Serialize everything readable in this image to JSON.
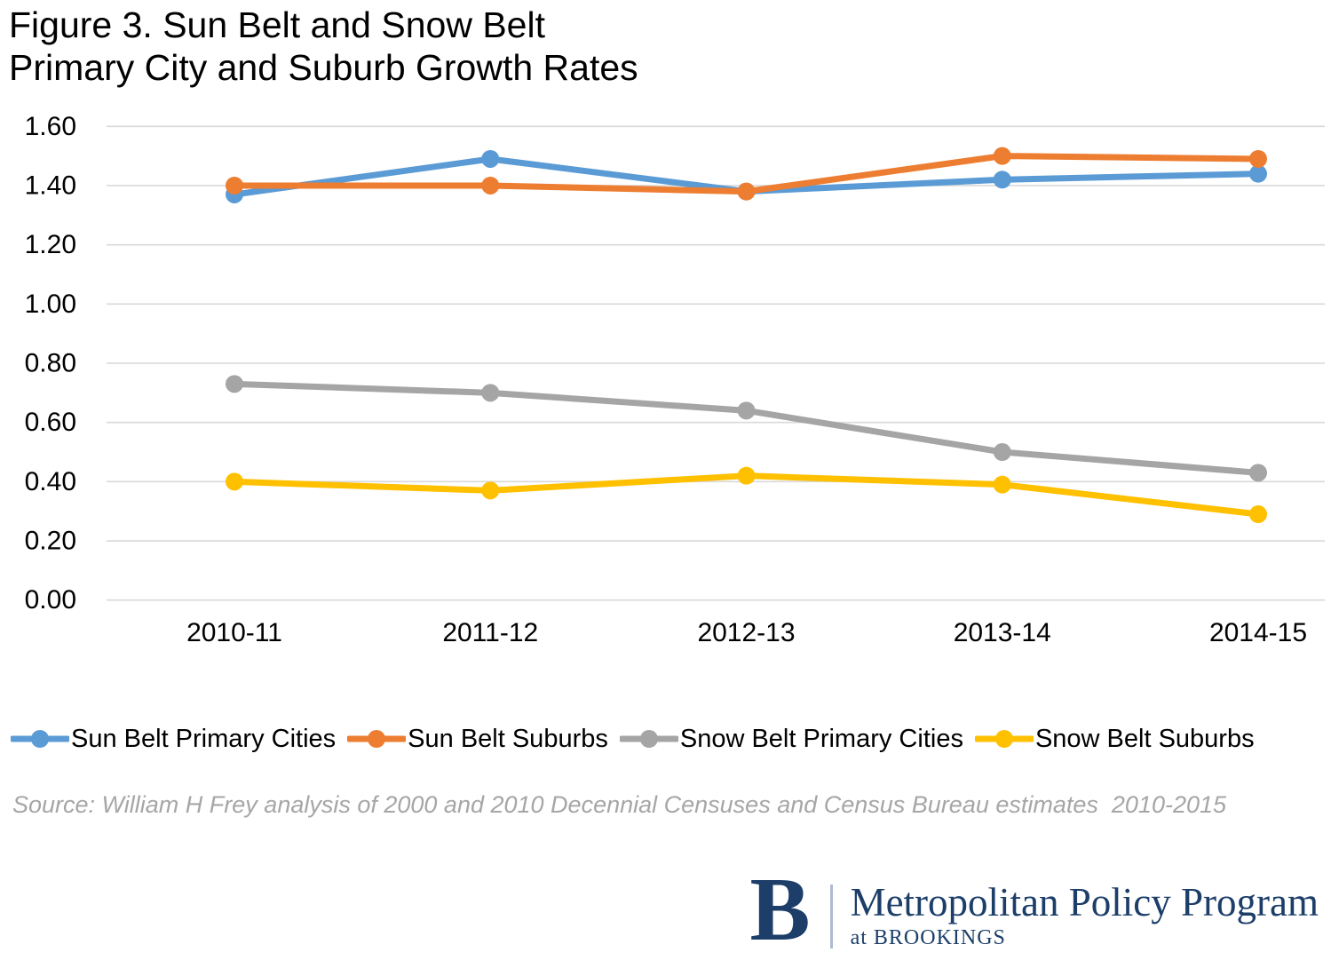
{
  "figure": {
    "title_line1": "Figure 3. Sun Belt and Snow Belt",
    "title_line2": "Primary City and Suburb Growth Rates"
  },
  "chart_data": {
    "type": "line",
    "title": "Figure 3. Sun Belt and Snow Belt Primary City and Suburb Growth Rates",
    "xlabel": "",
    "ylabel": "",
    "categories": [
      "2010-11",
      "2011-12",
      "2012-13",
      "2013-14",
      "2014-15"
    ],
    "series": [
      {
        "name": "Sun Belt Primary Cities",
        "color": "#5B9BD5",
        "values": [
          1.37,
          1.49,
          1.38,
          1.42,
          1.44
        ]
      },
      {
        "name": "Sun Belt Suburbs",
        "color": "#ED7D31",
        "values": [
          1.4,
          1.4,
          1.38,
          1.5,
          1.49
        ]
      },
      {
        "name": "Snow Belt Primary Cities",
        "color": "#A5A5A5",
        "values": [
          0.73,
          0.7,
          0.64,
          0.5,
          0.43
        ]
      },
      {
        "name": "Snow Belt Suburbs",
        "color": "#FFC000",
        "values": [
          0.4,
          0.37,
          0.42,
          0.39,
          0.29
        ]
      }
    ],
    "ylim": [
      0,
      1.6
    ],
    "ytick_step": 0.2,
    "ytick_labels": [
      "0.00",
      "0.20",
      "0.40",
      "0.60",
      "0.80",
      "1.00",
      "1.20",
      "1.40",
      "1.60"
    ],
    "grid": "horizontal",
    "legend_position": "bottom"
  },
  "source_note": "Source: William H Frey analysis of 2000 and 2010 Decennial Censuses and Census Bureau estimates  2010-2015",
  "logo": {
    "monogram": "B",
    "program": "Metropolitan Policy Program",
    "sub": "at BROOKINGS"
  },
  "colors": {
    "gridline": "#D9D9D9",
    "axis_text": "#000000",
    "source_text": "#A6A6A6",
    "brookings_navy": "#1C3E69"
  }
}
